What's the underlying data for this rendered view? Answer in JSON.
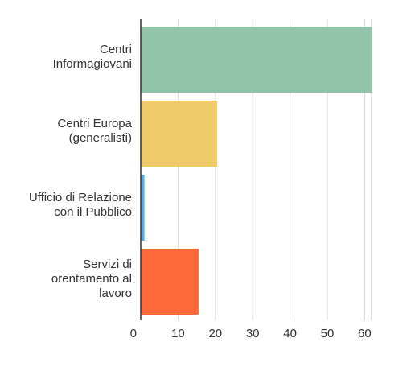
{
  "chart_data": {
    "type": "bar",
    "orientation": "horizontal",
    "categories": [
      "Centri Informagiovani",
      "Centri Europa (generalisti)",
      "Ufficio di Relazione con il Pubblico",
      "Servizi di orentamento al lavoro"
    ],
    "category_lines": [
      [
        "Centri",
        "Informagiovani"
      ],
      [
        "Centri Europa",
        "(generalisti)"
      ],
      [
        "Ufficio di Relazione",
        "con il Pubblico"
      ],
      [
        "Servizi di",
        "orentamento al",
        "lavoro"
      ]
    ],
    "values": [
      62,
      20.5,
      1,
      15.5
    ],
    "colors": [
      "#91c4a9",
      "#f0cb6a",
      "#5aaee3",
      "#fe6a3a"
    ],
    "xlim": [
      0,
      62
    ],
    "xticks": [
      0,
      10,
      20,
      30,
      40,
      50,
      60
    ],
    "grid": true,
    "title": "",
    "xlabel": "",
    "ylabel": ""
  }
}
